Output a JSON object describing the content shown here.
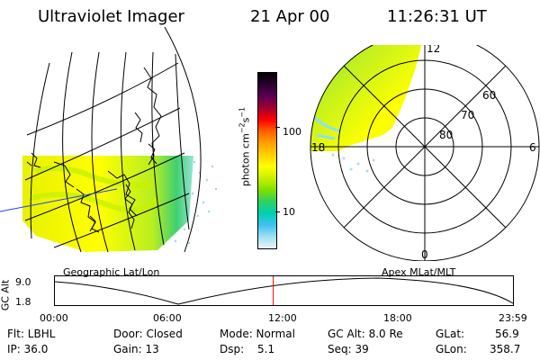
{
  "header": {
    "instrument": "Ultraviolet Imager",
    "date": "21 Apr 00",
    "time": "11:26:31 UT"
  },
  "left_panel": {
    "caption": "Geographic Lat/Lon"
  },
  "right_panel": {
    "caption": "Apex MLat/MLT",
    "lat_labels": [
      "60",
      "70",
      "80"
    ],
    "mlt_labels": [
      "12",
      "18",
      "6",
      "0"
    ]
  },
  "colorbar": {
    "unit_main": "photon cm",
    "unit_exp1": "−2",
    "unit_mid": "s",
    "unit_exp2": "−1",
    "ticks": [
      "100",
      "10"
    ],
    "colors": [
      "#000000",
      "#2a0030",
      "#5a0050",
      "#a00030",
      "#ff0000",
      "#ff6000",
      "#ffa000",
      "#ffd000",
      "#ffff00",
      "#c8f000",
      "#80e000",
      "#30d060",
      "#00d0b0",
      "#40c0f0",
      "#a0e0f0",
      "#e8f4f8"
    ]
  },
  "altitude_plot": {
    "axis_label": "GC Alt",
    "y_ticks": [
      "9.0",
      "1.8"
    ],
    "x_ticks": [
      "00:00",
      "06:00",
      "12:00",
      "18:00",
      "23:59"
    ],
    "current_marker_hour": 11.44
  },
  "status": {
    "flt": "Flt: LBHL",
    "door": "Door: Closed",
    "mode": "Mode:  Normal",
    "gcalt": "GC Alt: 8.0 Re",
    "glat_label": "GLat:",
    "glat_value": "56.9",
    "ip": "IP: 36.0",
    "gain": "Gain: 13",
    "dsp_label": "Dsp:",
    "dsp_value": "5.1",
    "seq": "Seq: 39",
    "glon_label": "GLon:",
    "glon_value": "358.7"
  }
}
